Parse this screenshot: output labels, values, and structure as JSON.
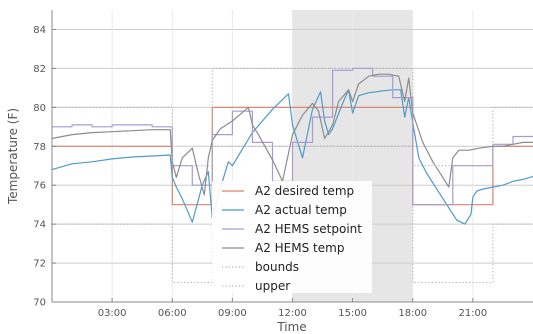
{
  "chart_data": {
    "type": "line",
    "xlabel": "Time",
    "ylabel": "Temperature (F)",
    "xlim": [
      0,
      24
    ],
    "ylim": [
      70,
      85
    ],
    "xticks": [
      3,
      6,
      9,
      12,
      15,
      18,
      21
    ],
    "xtick_labels": [
      "03:00",
      "06:00",
      "09:00",
      "12:00",
      "15:00",
      "18:00",
      "21:00"
    ],
    "yticks": [
      70,
      72,
      74,
      76,
      78,
      80,
      82,
      84
    ],
    "ytick_labels": [
      "70",
      "72",
      "74",
      "76",
      "78",
      "80",
      "82",
      "84"
    ],
    "grid": true,
    "legend_placement": "lower-center",
    "shaded_regions": [
      {
        "x_start": 12,
        "x_end": 18,
        "color": "#e6e6e6"
      }
    ],
    "series": [
      {
        "name": "A2 desired temp",
        "color": "#d9826e",
        "style": "solid",
        "x": [
          0,
          6,
          6,
          8,
          8,
          18,
          18,
          22,
          22,
          24
        ],
        "y": [
          78,
          78,
          75,
          75,
          80,
          80,
          75,
          75,
          78,
          78
        ]
      },
      {
        "name": "A2 actual temp",
        "color": "#4f9bc9",
        "style": "solid",
        "x": [
          0,
          1,
          2,
          3,
          4,
          5,
          5.9,
          6.0,
          6.2,
          6.5,
          7.0,
          7.5,
          7.8,
          8.0,
          8.3,
          8.8,
          9.0,
          10.0,
          11.0,
          11.8,
          12.0,
          12.5,
          13.0,
          13.4,
          13.6,
          13.8,
          14.0,
          14.5,
          14.8,
          15.0,
          15.3,
          15.8,
          16.2,
          16.5,
          17.0,
          17.4,
          17.6,
          17.8,
          18.0,
          18.3,
          18.7,
          19.2,
          19.7,
          20.2,
          20.6,
          20.9,
          21.0,
          21.2,
          21.5,
          22.0,
          22.5,
          23.0,
          23.5,
          24
        ],
        "y": [
          76.8,
          77.1,
          77.2,
          77.35,
          77.45,
          77.5,
          77.55,
          76.4,
          75.9,
          75.3,
          74.1,
          76.0,
          76.7,
          74.3,
          75.5,
          77.2,
          77.0,
          78.7,
          79.9,
          80.7,
          79.1,
          77.4,
          79.9,
          80.8,
          79.3,
          78.6,
          78.9,
          80.2,
          80.9,
          79.7,
          80.6,
          80.75,
          80.8,
          80.85,
          80.9,
          80.9,
          79.5,
          80.5,
          79.2,
          77.4,
          76.6,
          75.8,
          75.0,
          74.2,
          74.0,
          74.5,
          75.4,
          75.7,
          75.8,
          75.9,
          76.0,
          76.2,
          76.3,
          76.45
        ]
      },
      {
        "name": "A2 HEMS setpoint",
        "color": "#a99ad3",
        "style": "solid",
        "x": [
          0,
          1,
          1,
          2,
          2,
          3,
          3,
          5,
          5,
          6,
          6,
          7,
          7,
          8,
          8,
          9,
          9,
          10,
          10,
          11,
          11,
          12,
          12,
          13,
          13,
          14,
          14,
          15,
          15,
          16,
          16,
          17,
          17,
          18,
          18,
          20,
          20,
          22,
          22,
          23,
          23,
          24
        ],
        "y": [
          79,
          79,
          79.1,
          79.1,
          79,
          79,
          79.1,
          79.1,
          79,
          79,
          77,
          77,
          76,
          76,
          78.6,
          78.6,
          79.8,
          79.8,
          78.2,
          78.2,
          76.2,
          76.2,
          78.2,
          78.2,
          79.5,
          79.5,
          81.9,
          81.9,
          82,
          82,
          81.6,
          81.6,
          80.5,
          80.5,
          75,
          75,
          77,
          77,
          78.1,
          78.1,
          78.5,
          78.5
        ]
      },
      {
        "name": "A2 HEMS temp",
        "color": "#8c8c8c",
        "style": "solid",
        "x": [
          0,
          1,
          2,
          3,
          4,
          5,
          5.9,
          6.0,
          6.2,
          6.5,
          7.0,
          7.3,
          7.6,
          7.8,
          8.0,
          8.4,
          9.0,
          9.8,
          10.0,
          10.3,
          11.0,
          11.5,
          12.0,
          12.5,
          13.0,
          13.3,
          13.6,
          14.0,
          14.3,
          14.8,
          15.0,
          15.3,
          15.8,
          16.3,
          16.8,
          17.3,
          17.6,
          17.8,
          18.0,
          18.5,
          19.0,
          19.5,
          19.8,
          20.0,
          20.3,
          20.8,
          21.3,
          22.0,
          22.5,
          23.0,
          23.5,
          24
        ],
        "y": [
          78.4,
          78.6,
          78.7,
          78.75,
          78.8,
          78.85,
          78.85,
          77.2,
          76.4,
          77.4,
          77.9,
          76.6,
          75.5,
          77.4,
          78.3,
          78.9,
          79.3,
          80.0,
          79.1,
          78.6,
          77.3,
          76.2,
          78.6,
          79.6,
          80.2,
          79.8,
          78.4,
          79.1,
          80.3,
          80.9,
          80.3,
          81.2,
          81.6,
          81.7,
          81.7,
          81.6,
          80.3,
          81.5,
          79.7,
          78.2,
          77.2,
          76.4,
          75.9,
          77.4,
          77.8,
          77.8,
          77.9,
          78.0,
          78.0,
          78.1,
          78.2,
          78.2
        ]
      },
      {
        "name": "bounds",
        "color": "#b0b0b0",
        "style": "dotted",
        "x": [
          0,
          6,
          6,
          8,
          8,
          18,
          18,
          22,
          22,
          24
        ],
        "y": [
          74,
          74,
          71,
          71,
          78,
          78,
          71,
          71,
          74,
          74
        ]
      },
      {
        "name": "upper",
        "color": "#b0b0b0",
        "style": "dotted",
        "x": [
          0,
          6,
          6,
          8,
          8,
          18,
          18,
          22,
          22,
          24
        ],
        "y": [
          80,
          80,
          77,
          77,
          82,
          82,
          77,
          77,
          80,
          80
        ]
      }
    ]
  }
}
